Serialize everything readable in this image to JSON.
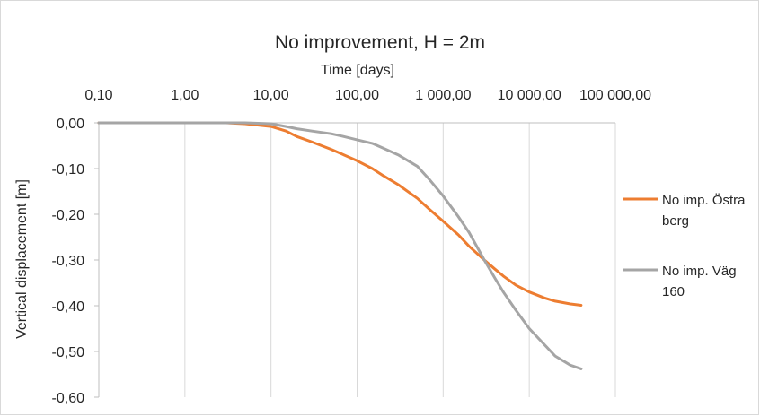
{
  "chart_data": {
    "type": "line",
    "title": "No improvement, H = 2m",
    "xlabel": "Time [days]",
    "ylabel": "Vertical displacement [m]",
    "x_scale": "log",
    "x_axis_position": "top",
    "x_ticks": [
      0.1,
      1,
      10,
      100,
      1000,
      10000,
      100000
    ],
    "x_tick_labels": [
      "0,10",
      "1,00",
      "10,00",
      "100,00",
      "1 000,00",
      "10 000,00",
      "100 000,00"
    ],
    "ylim": [
      -0.6,
      0.0
    ],
    "y_ticks": [
      0.0,
      -0.1,
      -0.2,
      -0.3,
      -0.4,
      -0.5,
      -0.6
    ],
    "y_tick_labels": [
      "0,00",
      "-0,10",
      "-0,20",
      "-0,30",
      "-0,40",
      "-0,50",
      "-0,60"
    ],
    "grid": "vertical",
    "legend_position": "right",
    "series": [
      {
        "name": "No imp. Östra berg",
        "color": "#ED7D31",
        "points": [
          [
            0.1,
            0.0
          ],
          [
            1,
            0.0
          ],
          [
            3,
            0.0
          ],
          [
            5,
            -0.002
          ],
          [
            10,
            -0.008
          ],
          [
            15,
            -0.018
          ],
          [
            20,
            -0.03
          ],
          [
            30,
            -0.042
          ],
          [
            50,
            -0.058
          ],
          [
            70,
            -0.07
          ],
          [
            100,
            -0.083
          ],
          [
            150,
            -0.1
          ],
          [
            200,
            -0.115
          ],
          [
            300,
            -0.135
          ],
          [
            500,
            -0.165
          ],
          [
            700,
            -0.19
          ],
          [
            1000,
            -0.215
          ],
          [
            1500,
            -0.245
          ],
          [
            2000,
            -0.27
          ],
          [
            3000,
            -0.3
          ],
          [
            4000,
            -0.32
          ],
          [
            5000,
            -0.335
          ],
          [
            7000,
            -0.355
          ],
          [
            10000,
            -0.37
          ],
          [
            15000,
            -0.383
          ],
          [
            20000,
            -0.39
          ],
          [
            30000,
            -0.396
          ],
          [
            40000,
            -0.399
          ]
        ]
      },
      {
        "name": "No imp. Väg 160",
        "color": "#A5A5A5",
        "points": [
          [
            0.1,
            0.0
          ],
          [
            1,
            0.0
          ],
          [
            5,
            0.0
          ],
          [
            10,
            -0.002
          ],
          [
            15,
            -0.008
          ],
          [
            20,
            -0.013
          ],
          [
            30,
            -0.018
          ],
          [
            50,
            -0.024
          ],
          [
            70,
            -0.03
          ],
          [
            100,
            -0.037
          ],
          [
            150,
            -0.045
          ],
          [
            200,
            -0.055
          ],
          [
            300,
            -0.07
          ],
          [
            500,
            -0.095
          ],
          [
            700,
            -0.125
          ],
          [
            1000,
            -0.16
          ],
          [
            1500,
            -0.205
          ],
          [
            2000,
            -0.24
          ],
          [
            3000,
            -0.3
          ],
          [
            4000,
            -0.34
          ],
          [
            5000,
            -0.37
          ],
          [
            7000,
            -0.41
          ],
          [
            10000,
            -0.45
          ],
          [
            15000,
            -0.485
          ],
          [
            20000,
            -0.51
          ],
          [
            30000,
            -0.53
          ],
          [
            40000,
            -0.538
          ]
        ]
      }
    ]
  },
  "legend": {
    "items": [
      {
        "line1": "No imp. Östra",
        "line2": "berg"
      },
      {
        "line1": "No imp. Väg",
        "line2": "160"
      }
    ]
  }
}
